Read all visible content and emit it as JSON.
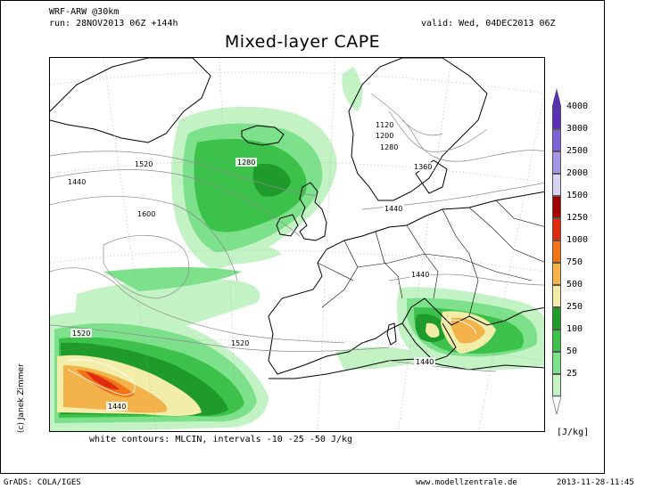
{
  "header": {
    "model": "WRF-ARW @30km",
    "run": "run: 28NOV2013 06Z +144h",
    "valid": "valid: Wed, 04DEC2013 06Z",
    "title": "Mixed-layer CAPE"
  },
  "author_credit": "(c) Janek Zimmer",
  "contour_note": "white contours: MLCIN, intervals -10 -25 -50 J/kg",
  "units": "[J/kg]",
  "footer": {
    "left": "GrADS: COLA/IGES",
    "center": "www.modellzentrale.de",
    "right": "2013-11-28-11:45"
  },
  "colorbar": {
    "levels": [
      "4000",
      "3000",
      "2500",
      "2000",
      "1500",
      "1250",
      "1000",
      "750",
      "500",
      "250",
      "100",
      "50",
      "25"
    ],
    "colors": [
      "#5a2fb8",
      "#7b63d6",
      "#a596e6",
      "#d7d3f2",
      "#a00000",
      "#e02a10",
      "#f27418",
      "#f3b34a",
      "#f2eeaa",
      "#1f9b2c",
      "#3cc24a",
      "#7de08a",
      "#c3f3c4"
    ]
  },
  "contour_labels": [
    {
      "name": "contour-label-1120",
      "text": "1120"
    },
    {
      "name": "contour-label-1200",
      "text": "1200"
    },
    {
      "name": "contour-label-1280-north",
      "text": "1280"
    },
    {
      "name": "contour-label-1360",
      "text": "1360"
    },
    {
      "name": "contour-label-1280-iceland",
      "text": "1280"
    },
    {
      "name": "contour-label-1520-north",
      "text": "1520"
    },
    {
      "name": "contour-label-1440-west",
      "text": "1440"
    },
    {
      "name": "contour-label-1600",
      "text": "1600"
    },
    {
      "name": "contour-label-1440-scandinavia",
      "text": "1440"
    },
    {
      "name": "contour-label-1440-italy",
      "text": "1440"
    },
    {
      "name": "contour-label-1520-south",
      "text": "1520"
    },
    {
      "name": "contour-label-1520-mid",
      "text": "1520"
    },
    {
      "name": "contour-label-1440-ionian",
      "text": "1440"
    },
    {
      "name": "contour-label-1440-southwest",
      "text": "1440"
    }
  ]
}
